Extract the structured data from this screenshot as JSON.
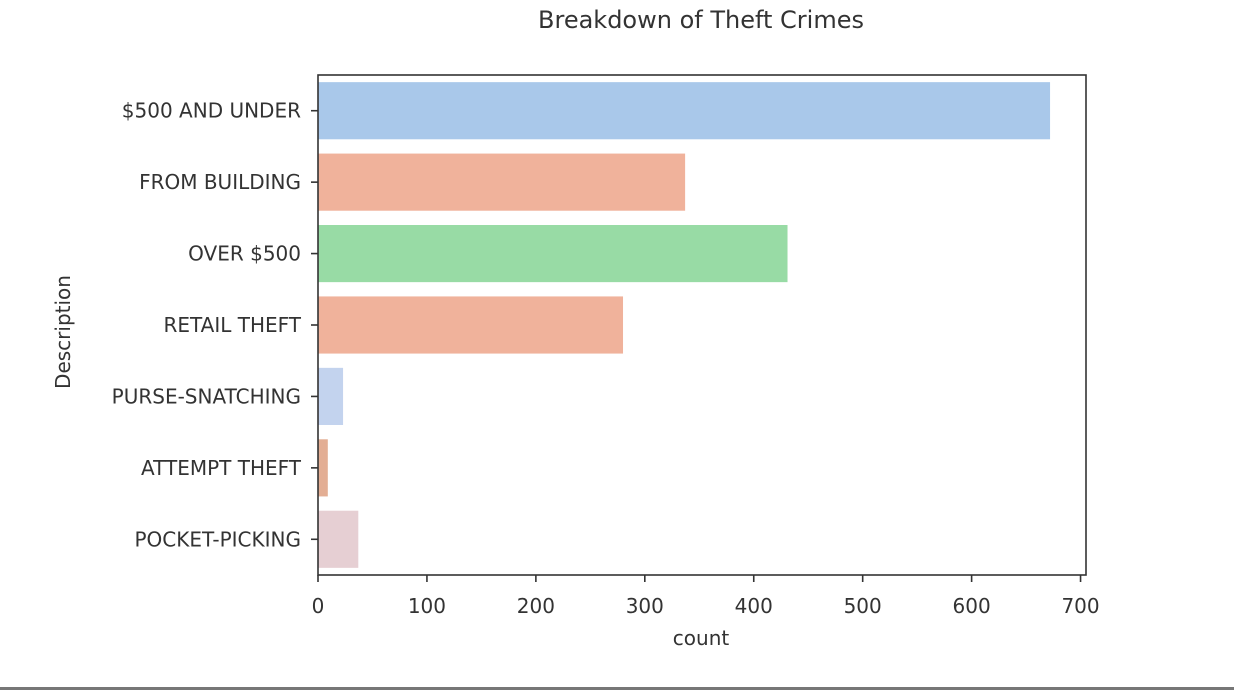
{
  "chart_data": {
    "type": "bar",
    "orientation": "horizontal",
    "title": "Breakdown of Theft Crimes",
    "xlabel": "count",
    "ylabel": "Description",
    "categories": [
      "$500 AND UNDER",
      "FROM BUILDING",
      "OVER $500",
      "RETAIL THEFT",
      "PURSE-SNATCHING",
      "ATTEMPT THEFT",
      "POCKET-PICKING"
    ],
    "values": [
      672,
      337,
      431,
      280,
      23,
      9,
      37
    ],
    "colors": [
      "#a9c8ea",
      "#f0b29b",
      "#98dba5",
      "#f0b29b",
      "#c3d3ee",
      "#e3ae94",
      "#e6cfd3"
    ],
    "xlim": [
      0,
      705
    ],
    "xticks": [
      0,
      100,
      200,
      300,
      400,
      500,
      600,
      700
    ],
    "xtick_labels": [
      "0",
      "100",
      "200",
      "300",
      "400",
      "500",
      "600",
      "700"
    ],
    "grid": false,
    "legend": "none"
  }
}
